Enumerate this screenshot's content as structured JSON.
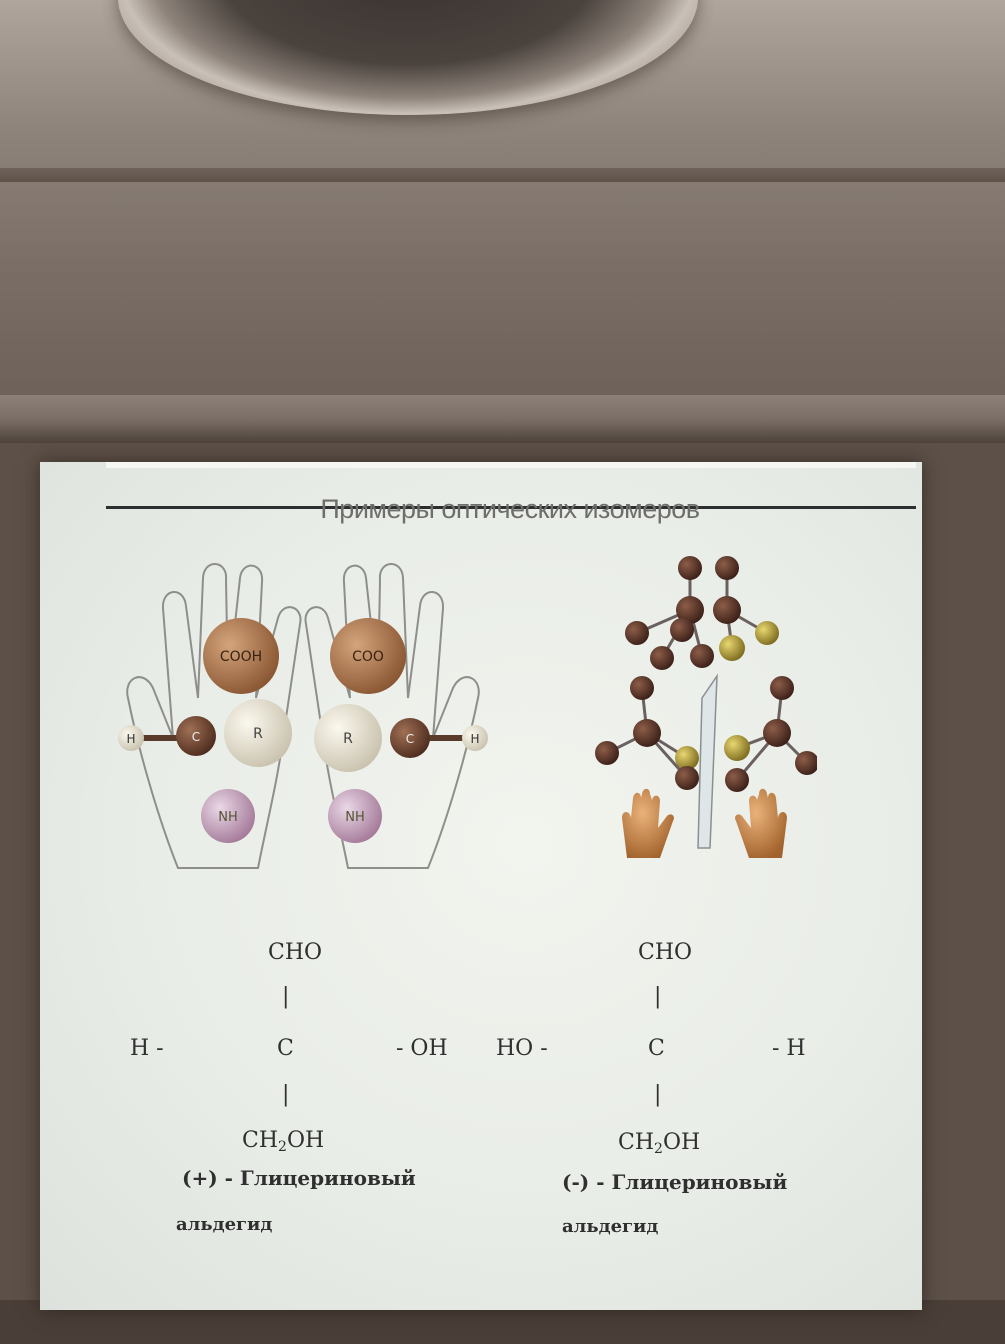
{
  "slide": {
    "title": "Примеры оптических изомеров"
  },
  "hand_model": {
    "groups": {
      "top": "COOH",
      "top_right": "COO",
      "center": "C",
      "side": "H",
      "r": "R",
      "bottom": "NH"
    }
  },
  "formula_left": {
    "top": "CHO",
    "left": "H -",
    "center": "C",
    "right": "- OH",
    "bottom_main": "CH",
    "bottom_sub": "2",
    "bottom_tail": "OH",
    "name_line1": "(+) - Глицериновый",
    "name_line2": "альдегид"
  },
  "formula_right": {
    "top": "CHO",
    "left": "HO -",
    "center": "C",
    "right": "- H",
    "bottom_main": "CH",
    "bottom_sub": "2",
    "bottom_tail": "OH",
    "name_line1": "(-) - Глицериновый",
    "name_line2": "альдегид"
  }
}
